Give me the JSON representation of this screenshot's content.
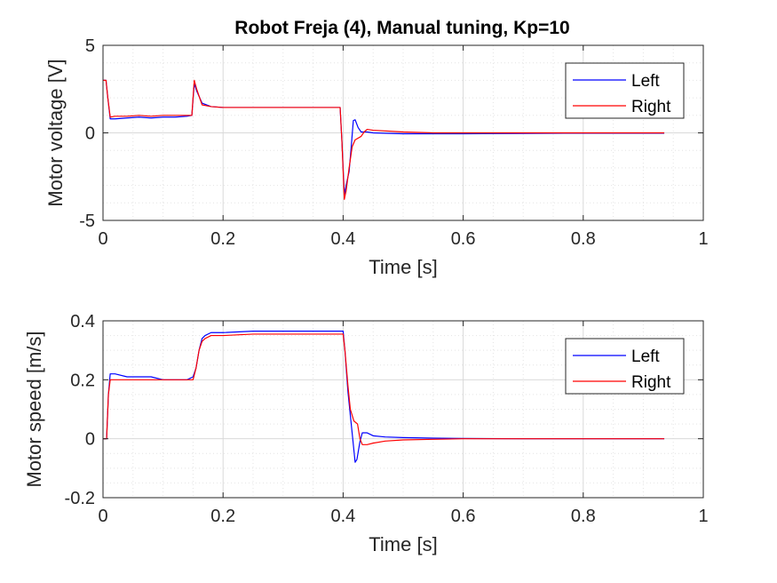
{
  "figure": {
    "title": "Robot Freja (4), Manual tuning, Kp=10"
  },
  "colors": {
    "left": "#0000ff",
    "right": "#ff0000",
    "grid": "#d9d9d9",
    "axes": "#262626"
  },
  "chart_data": [
    {
      "type": "line",
      "title": "Robot Freja (4), Manual tuning, Kp=10",
      "xlabel": "Time [s]",
      "ylabel": "Motor voltage [V]",
      "xlim": [
        0,
        1
      ],
      "ylim": [
        -5,
        5
      ],
      "xticks": [
        0,
        0.2,
        0.4,
        0.6,
        0.8,
        1
      ],
      "xtick_labels": [
        "0",
        "0.2",
        "0.4",
        "0.6",
        "0.8",
        "1"
      ],
      "yticks": [
        -5,
        0,
        5
      ],
      "ytick_labels": [
        "-5",
        "0",
        "5"
      ],
      "grid": true,
      "minor_grid": true,
      "legend_position": "top-right",
      "series": [
        {
          "name": "Left",
          "color": "#0000ff",
          "x": [
            0,
            0.005,
            0.008,
            0.012,
            0.02,
            0.04,
            0.06,
            0.08,
            0.1,
            0.12,
            0.14,
            0.148,
            0.152,
            0.156,
            0.165,
            0.18,
            0.2,
            0.25,
            0.3,
            0.35,
            0.395,
            0.398,
            0.402,
            0.405,
            0.41,
            0.413,
            0.417,
            0.42,
            0.425,
            0.43,
            0.44,
            0.45,
            0.5,
            0.55,
            0.6,
            0.7,
            0.8,
            0.935
          ],
          "y": [
            3.0,
            3.0,
            2.0,
            0.8,
            0.8,
            0.85,
            0.9,
            0.85,
            0.9,
            0.9,
            0.95,
            1.0,
            2.8,
            2.4,
            1.7,
            1.5,
            1.45,
            1.45,
            1.45,
            1.45,
            1.45,
            -0.5,
            -3.5,
            -3.0,
            -2.2,
            -1.0,
            0.7,
            0.75,
            0.3,
            0.05,
            0.05,
            0.0,
            -0.05,
            -0.05,
            -0.05,
            -0.03,
            -0.02,
            -0.02
          ]
        },
        {
          "name": "Right",
          "color": "#ff0000",
          "x": [
            0,
            0.005,
            0.008,
            0.012,
            0.02,
            0.04,
            0.06,
            0.08,
            0.1,
            0.12,
            0.14,
            0.148,
            0.152,
            0.156,
            0.165,
            0.18,
            0.2,
            0.25,
            0.3,
            0.35,
            0.395,
            0.398,
            0.402,
            0.405,
            0.41,
            0.415,
            0.42,
            0.43,
            0.435,
            0.44,
            0.45,
            0.5,
            0.55,
            0.6,
            0.7,
            0.8,
            0.935
          ],
          "y": [
            3.0,
            3.0,
            2.0,
            0.9,
            0.95,
            0.95,
            1.0,
            0.95,
            1.0,
            1.0,
            1.0,
            1.0,
            3.0,
            2.5,
            1.6,
            1.5,
            1.45,
            1.45,
            1.45,
            1.45,
            1.45,
            -0.5,
            -3.8,
            -3.3,
            -2.0,
            -0.8,
            -0.4,
            -0.2,
            0.05,
            0.2,
            0.15,
            0.05,
            0.0,
            0.0,
            0.0,
            0.0,
            0.0
          ]
        }
      ]
    },
    {
      "type": "line",
      "title": "",
      "xlabel": "Time [s]",
      "ylabel": "Motor speed [m/s]",
      "xlim": [
        0,
        1
      ],
      "ylim": [
        -0.2,
        0.4
      ],
      "xticks": [
        0,
        0.2,
        0.4,
        0.6,
        0.8,
        1
      ],
      "xtick_labels": [
        "0",
        "0.2",
        "0.4",
        "0.6",
        "0.8",
        "1"
      ],
      "yticks": [
        -0.2,
        0,
        0.2,
        0.4
      ],
      "ytick_labels": [
        "-0.2",
        "0",
        "0.2",
        "0.4"
      ],
      "grid": true,
      "minor_grid": true,
      "legend_position": "top-right",
      "series": [
        {
          "name": "Left",
          "color": "#0000ff",
          "x": [
            0,
            0.003,
            0.006,
            0.009,
            0.012,
            0.02,
            0.04,
            0.06,
            0.08,
            0.1,
            0.12,
            0.14,
            0.15,
            0.155,
            0.16,
            0.165,
            0.17,
            0.18,
            0.2,
            0.25,
            0.3,
            0.35,
            0.4,
            0.403,
            0.408,
            0.412,
            0.416,
            0.42,
            0.423,
            0.428,
            0.432,
            0.44,
            0.45,
            0.47,
            0.5,
            0.55,
            0.6,
            0.7,
            0.8,
            0.935
          ],
          "y": [
            0.0,
            0.0,
            0.0,
            0.15,
            0.22,
            0.22,
            0.21,
            0.21,
            0.21,
            0.2,
            0.2,
            0.2,
            0.21,
            0.24,
            0.3,
            0.34,
            0.35,
            0.36,
            0.36,
            0.365,
            0.365,
            0.365,
            0.365,
            0.3,
            0.16,
            0.08,
            0.0,
            -0.08,
            -0.07,
            -0.01,
            0.02,
            0.02,
            0.01,
            0.006,
            0.004,
            0.002,
            0.001,
            0.0,
            0.0,
            0.0
          ]
        },
        {
          "name": "Right",
          "color": "#ff0000",
          "x": [
            0,
            0.003,
            0.006,
            0.009,
            0.012,
            0.02,
            0.04,
            0.06,
            0.08,
            0.1,
            0.12,
            0.14,
            0.15,
            0.155,
            0.16,
            0.165,
            0.17,
            0.18,
            0.2,
            0.25,
            0.3,
            0.35,
            0.4,
            0.403,
            0.408,
            0.412,
            0.418,
            0.424,
            0.428,
            0.432,
            0.436,
            0.44,
            0.45,
            0.47,
            0.5,
            0.55,
            0.6,
            0.7,
            0.8,
            0.935
          ],
          "y": [
            0.0,
            0.0,
            0.0,
            0.15,
            0.2,
            0.2,
            0.2,
            0.2,
            0.2,
            0.2,
            0.2,
            0.2,
            0.2,
            0.24,
            0.3,
            0.33,
            0.34,
            0.35,
            0.35,
            0.355,
            0.355,
            0.355,
            0.355,
            0.3,
            0.18,
            0.1,
            0.06,
            0.05,
            0.0,
            -0.02,
            -0.02,
            -0.02,
            -0.015,
            -0.008,
            -0.004,
            -0.002,
            0.0,
            0.0,
            0.0,
            0.0
          ]
        }
      ]
    }
  ]
}
